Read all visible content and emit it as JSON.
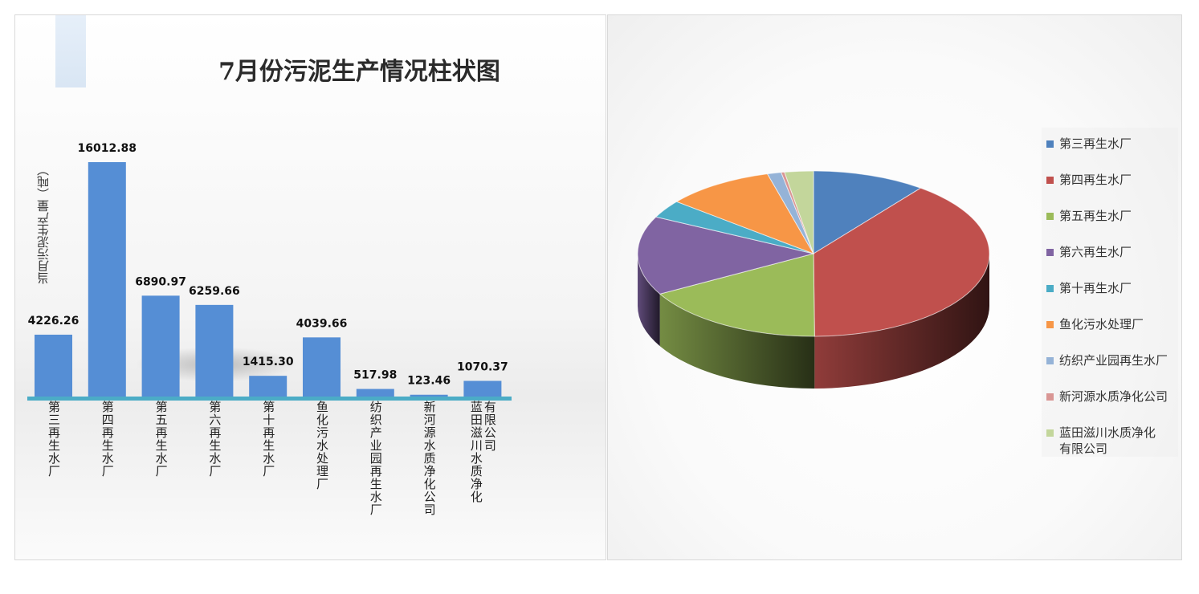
{
  "title": "7月份污泥生产情况柱状图",
  "chart_data": [
    {
      "type": "bar",
      "title": "7月份污泥生产情况柱状图",
      "ylabel": "当月污泥生产量（吨）",
      "xlabel": "",
      "categories": [
        "第三再生水厂",
        "第四再生水厂",
        "第五再生水厂",
        "第六再生水厂",
        "第十再生水厂",
        "鱼化污水处理厂",
        "纺织产业园再生水厂",
        "新河源水质净化公司",
        "蓝田滋川水质净化有限公司"
      ],
      "category_lines": [
        [
          "第三再生水厂"
        ],
        [
          "第四再生水厂"
        ],
        [
          "第五再生水厂"
        ],
        [
          "第六再生水厂"
        ],
        [
          "第十再生水厂"
        ],
        [
          "鱼化污水处理厂"
        ],
        [
          "纺织产业园再生水厂"
        ],
        [
          "新河源水质净化公司"
        ],
        [
          "蓝田滋川水质净化",
          "有限公司"
        ]
      ],
      "values": [
        4226.26,
        16012.88,
        6890.97,
        6259.66,
        1415.3,
        4039.66,
        517.98,
        123.46,
        1070.37
      ],
      "value_labels": [
        "4226.26",
        "16012.88",
        "6890.97",
        "6259.66",
        "1415.30",
        "4039.66",
        "517.98",
        "123.46",
        "1070.37"
      ],
      "ylim": [
        0,
        17000
      ],
      "color": "#558ed5",
      "baseline_color": "#4bacc6",
      "grid": false
    },
    {
      "type": "pie",
      "style": "3d",
      "categories": [
        "第三再生水厂",
        "第四再生水厂",
        "第五再生水厂",
        "第六再生水厂",
        "第十再生水厂",
        "鱼化污水处理厂",
        "纺织产业园再生水厂",
        "新河源水质净化公司",
        "蓝田滋川水质净化有限公司"
      ],
      "legend_lines": [
        [
          "第三再生水厂"
        ],
        [
          "第四再生水厂"
        ],
        [
          "第五再生水厂"
        ],
        [
          "第六再生水厂"
        ],
        [
          "第十再生水厂"
        ],
        [
          "鱼化污水处理厂"
        ],
        [
          "纺织产业园再生水厂"
        ],
        [
          "新河源水质净化公司"
        ],
        [
          "蓝田滋川水质净化",
          "有限公司"
        ]
      ],
      "values": [
        4226.26,
        16012.88,
        6890.97,
        6259.66,
        1415.3,
        4039.66,
        517.98,
        123.46,
        1070.37
      ],
      "colors": [
        "#4f81bd",
        "#c0504d",
        "#9bbb59",
        "#8064a2",
        "#4bacc6",
        "#f79646",
        "#95b3d7",
        "#d99694",
        "#c3d69b"
      ],
      "legend_position": "right"
    }
  ]
}
